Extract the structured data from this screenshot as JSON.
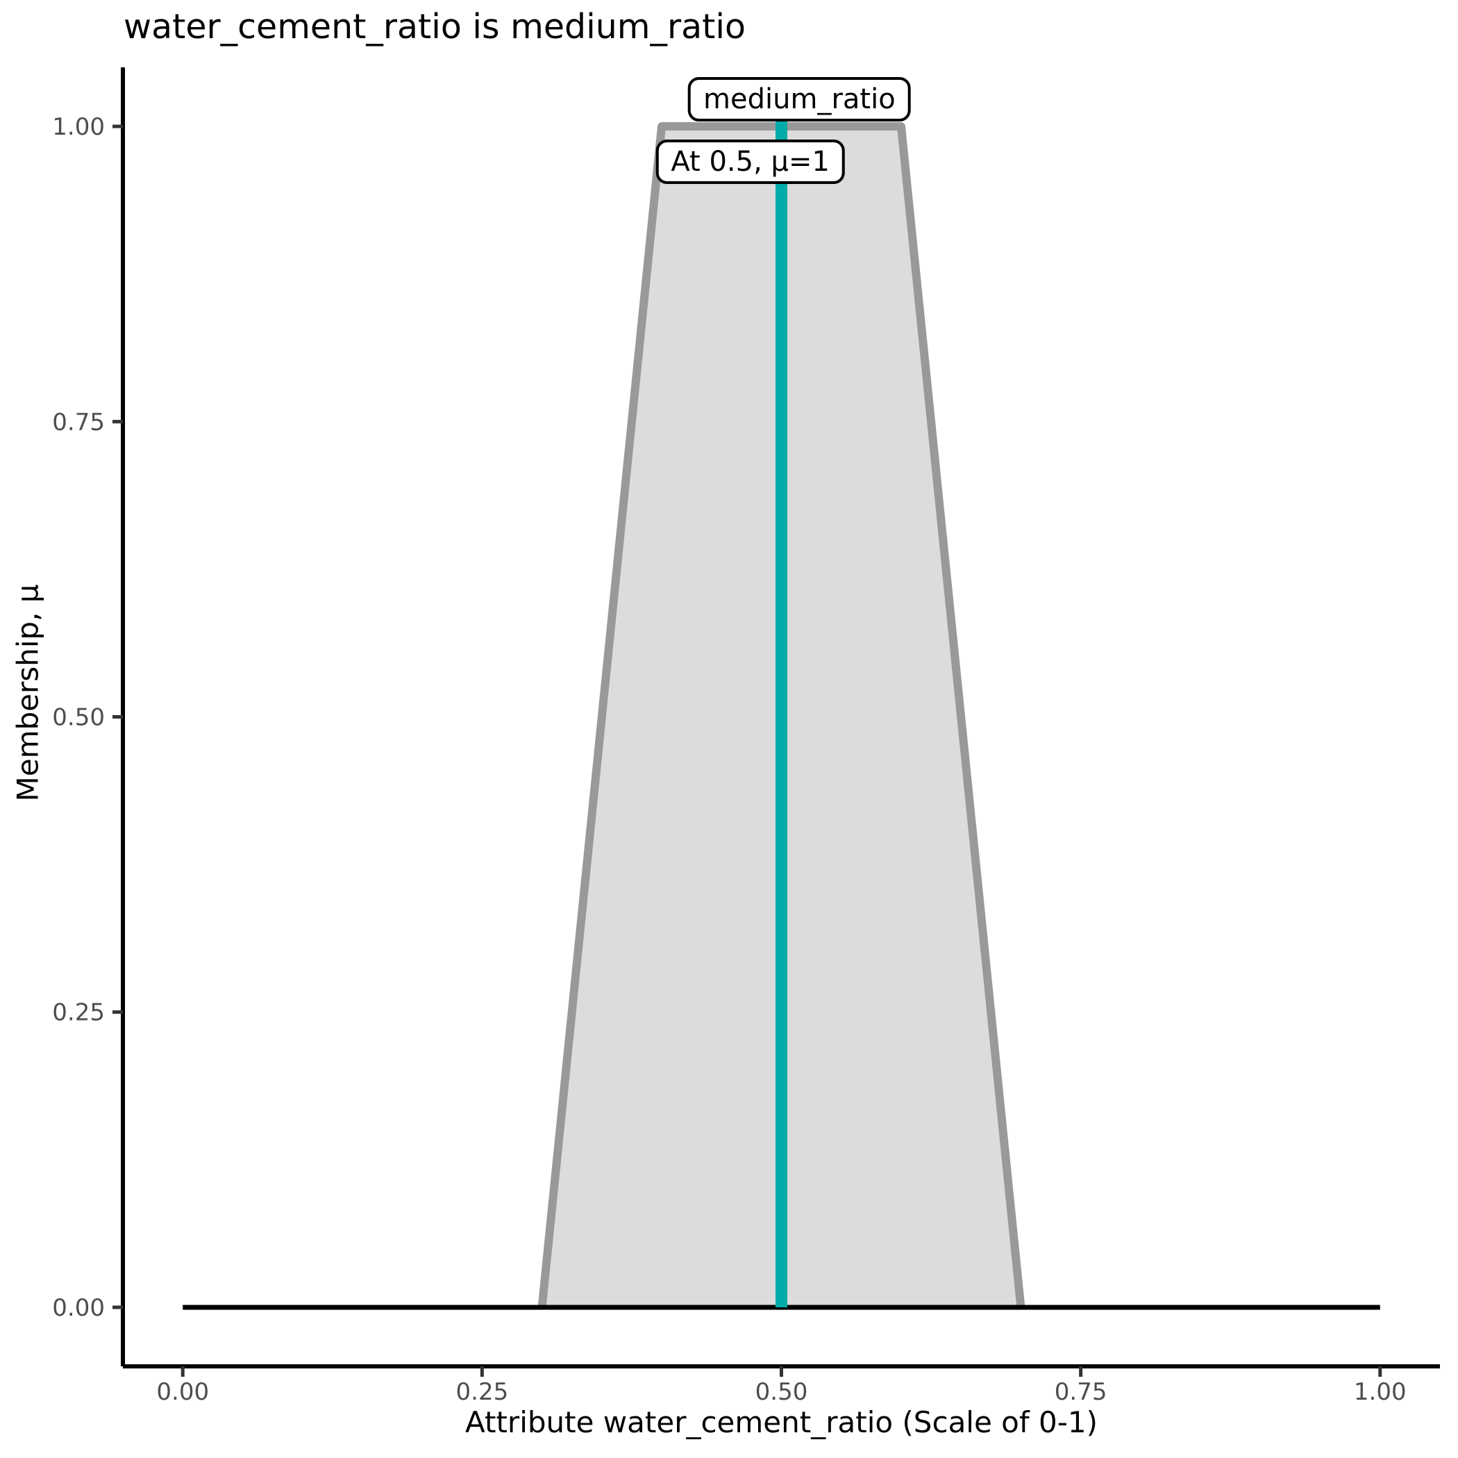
{
  "chart_data": {
    "type": "area",
    "title": "water_cement_ratio is medium_ratio",
    "xlabel": "Attribute water_cement_ratio (Scale of 0-1)",
    "ylabel": "Membership, μ",
    "xlim": [
      0,
      1
    ],
    "ylim": [
      0,
      1
    ],
    "grid": "off",
    "legend": "none",
    "x_ticks": {
      "values": [
        0,
        0.25,
        0.5,
        0.75,
        1
      ],
      "labels": [
        "0.00",
        "0.25",
        "0.50",
        "0.75",
        "1.00"
      ]
    },
    "y_ticks": {
      "values": [
        0,
        0.25,
        0.5,
        0.75,
        1
      ],
      "labels": [
        "0.00",
        "0.25",
        "0.50",
        "0.75",
        "1.00"
      ]
    },
    "series": [
      {
        "name": "medium_ratio membership function",
        "type": "polygon",
        "x": [
          0.3,
          0.4,
          0.6,
          0.7
        ],
        "y": [
          0,
          1,
          1,
          0
        ],
        "fill": "#DCDCDC",
        "stroke": "#999999"
      },
      {
        "name": "zero membership baseline",
        "type": "line",
        "x": [
          0,
          1
        ],
        "y": [
          0,
          0
        ],
        "color": "#000000"
      },
      {
        "name": "crisp input at 0.5",
        "type": "vline",
        "x": 0.5,
        "y_from": 0,
        "y_to": 1,
        "color": "#00ABA9"
      }
    ],
    "annotations": [
      {
        "text": "medium_ratio",
        "x": 0.515,
        "y": 1.023
      },
      {
        "text": "At 0.5, μ=1",
        "x": 0.474,
        "y": 0.97
      }
    ]
  },
  "colors": {
    "background": "#FFFFFF",
    "axis_line": "#000000",
    "tick_mark": "#333333",
    "tick_label": "#4D4D4D",
    "title_text": "#000000",
    "membership_fill": "#DCDCDC",
    "membership_stroke": "#999999",
    "crisp_line": "#00ABA9",
    "annotation_bg": "#FFFFFF",
    "annotation_border": "#000000"
  }
}
